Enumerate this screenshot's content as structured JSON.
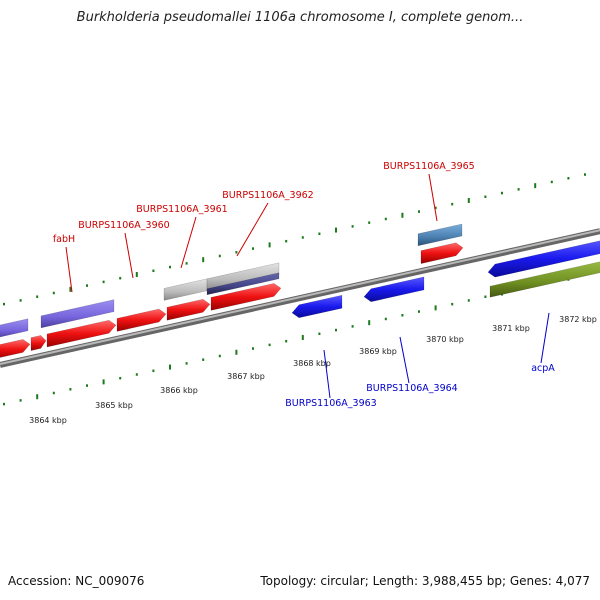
{
  "title": "Burkholderia pseudomallei 1106a chromosome I, complete genom...",
  "footer": {
    "accession": "Accession: NC_009076",
    "summary": "Topology: circular; Length: 3,988,455 bp; Genes: 4,077"
  },
  "scale_labels": [
    "3864 kbp",
    "3865 kbp",
    "3866 kbp",
    "3867 kbp",
    "3868 kbp",
    "3869 kbp",
    "3870 kbp",
    "3871 kbp",
    "3872 kbp"
  ],
  "forward_labels": [
    "fabH",
    "BURPS1106A_3960",
    "BURPS1106A_3961",
    "BURPS1106A_3962",
    "BURPS1106A_3965"
  ],
  "reverse_labels": [
    "BURPS1106A_3963",
    "BURPS1106A_3964",
    "acpA"
  ],
  "colors": {
    "forward_label": "#cc0000",
    "reverse_label": "#0000cc",
    "cds_red": "#ee1111",
    "cds_blue": "#1a1aee",
    "cds_purple": "#7766dd",
    "cds_gray": "#bbbbbb",
    "cds_darkpurple": "#444488",
    "cds_steel": "#4a7fb0",
    "cds_olive": "#6f8f22",
    "tick_green": "#1b7a1b",
    "backbone": "#888888"
  }
}
